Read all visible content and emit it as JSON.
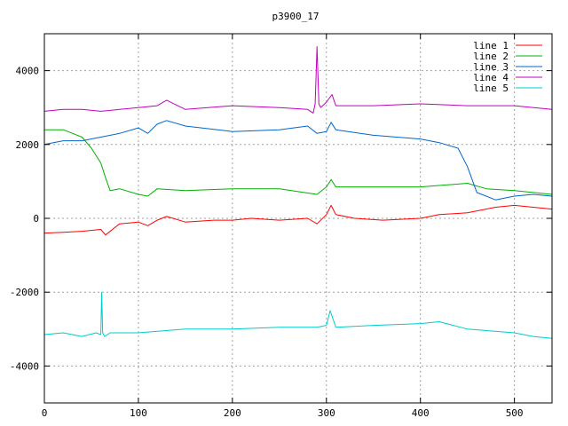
{
  "chart_data": {
    "type": "line",
    "title": "p3900_17",
    "xlabel": "",
    "ylabel": "",
    "xlim": [
      0,
      540
    ],
    "ylim": [
      -5000,
      5000
    ],
    "x_ticks": [
      0,
      100,
      200,
      300,
      400,
      500
    ],
    "y_ticks": [
      -4000,
      -2000,
      0,
      2000,
      4000
    ],
    "grid": true,
    "legend_position": "top-right",
    "series": [
      {
        "name": "line 1",
        "color": "#ff0000",
        "x": [
          0,
          20,
          40,
          60,
          65,
          80,
          100,
          110,
          120,
          130,
          150,
          180,
          200,
          220,
          250,
          280,
          290,
          300,
          305,
          310,
          330,
          360,
          400,
          420,
          450,
          480,
          500,
          520,
          540
        ],
        "y": [
          -400,
          -380,
          -350,
          -300,
          -450,
          -150,
          -100,
          -200,
          -50,
          50,
          -100,
          -50,
          -50,
          0,
          -50,
          0,
          -150,
          100,
          350,
          100,
          0,
          -50,
          0,
          100,
          150,
          300,
          350,
          300,
          250
        ]
      },
      {
        "name": "line 2",
        "color": "#00b000",
        "x": [
          0,
          20,
          30,
          40,
          50,
          60,
          65,
          70,
          80,
          100,
          110,
          120,
          150,
          200,
          250,
          290,
          300,
          305,
          310,
          350,
          400,
          450,
          470,
          500,
          540
        ],
        "y": [
          2400,
          2400,
          2300,
          2200,
          1900,
          1500,
          1100,
          750,
          800,
          650,
          600,
          800,
          750,
          800,
          800,
          650,
          850,
          1050,
          850,
          850,
          850,
          950,
          800,
          750,
          650
        ]
      },
      {
        "name": "line 3",
        "color": "#0066cc",
        "x": [
          0,
          20,
          40,
          60,
          80,
          100,
          110,
          120,
          130,
          150,
          200,
          250,
          280,
          290,
          300,
          305,
          310,
          350,
          400,
          420,
          440,
          450,
          460,
          480,
          500,
          520,
          540
        ],
        "y": [
          2000,
          2100,
          2100,
          2200,
          2300,
          2450,
          2300,
          2550,
          2650,
          2500,
          2350,
          2400,
          2500,
          2300,
          2350,
          2600,
          2400,
          2250,
          2150,
          2050,
          1900,
          1400,
          700,
          500,
          600,
          650,
          600
        ]
      },
      {
        "name": "line 4",
        "color": "#c000c0",
        "x": [
          0,
          20,
          40,
          60,
          80,
          100,
          120,
          130,
          150,
          200,
          250,
          280,
          286,
          288,
          290,
          292,
          294,
          300,
          306,
          310,
          350,
          400,
          450,
          500,
          540
        ],
        "y": [
          2900,
          2950,
          2950,
          2900,
          2950,
          3000,
          3050,
          3200,
          2950,
          3050,
          3000,
          2950,
          2850,
          3100,
          4650,
          3100,
          3000,
          3150,
          3350,
          3050,
          3050,
          3100,
          3050,
          3050,
          2950
        ]
      },
      {
        "name": "line 5",
        "color": "#00cccc",
        "x": [
          0,
          20,
          40,
          55,
          60,
          61,
          62,
          64,
          70,
          100,
          150,
          200,
          250,
          290,
          300,
          304,
          310,
          350,
          400,
          420,
          450,
          500,
          520,
          540
        ],
        "y": [
          -3150,
          -3100,
          -3200,
          -3100,
          -3150,
          -2000,
          -3100,
          -3200,
          -3100,
          -3100,
          -3000,
          -3000,
          -2950,
          -2950,
          -2900,
          -2500,
          -2950,
          -2900,
          -2850,
          -2800,
          -3000,
          -3100,
          -3200,
          -3250
        ]
      }
    ]
  }
}
